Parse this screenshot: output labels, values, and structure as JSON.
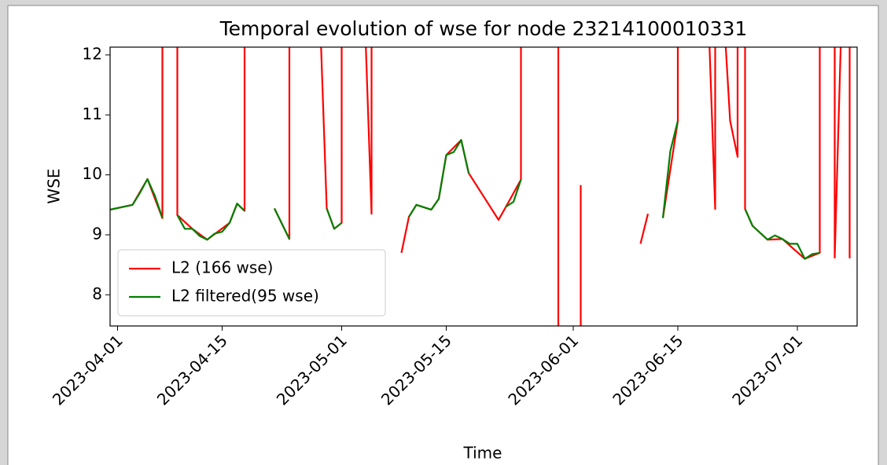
{
  "chart_data": {
    "type": "line",
    "title": "Temporal evolution of wse for node 23214100010331",
    "xlabel": "Time",
    "ylabel": "WSE",
    "xlim": [
      "2023-03-31",
      "2023-07-09"
    ],
    "xticks": [
      "2023-04-01",
      "2023-04-15",
      "2023-05-01",
      "2023-05-15",
      "2023-06-01",
      "2023-06-15",
      "2023-07-01"
    ],
    "ylim": [
      7.48,
      12.13
    ],
    "yticks": [
      8,
      9,
      10,
      11,
      12
    ],
    "legend": "lower left",
    "series": [
      {
        "name": "L2 (166 wse)",
        "color": "#ff0000",
        "x": [
          "2023-03-31",
          "2023-04-03",
          "2023-04-05",
          "2023-04-07",
          "2023-04-07",
          "2023-04-09",
          "2023-04-09",
          "2023-04-11",
          "2023-04-13",
          "2023-04-16",
          "2023-04-17",
          "2023-04-18",
          "2023-04-18",
          null,
          "2023-04-22",
          "2023-04-24",
          "2023-04-24",
          null,
          "2023-04-28",
          "2023-04-29",
          "2023-04-30",
          "2023-05-01",
          "2023-05-01",
          null,
          "2023-05-04",
          "2023-05-05",
          "2023-05-05",
          null,
          "2023-05-09",
          "2023-05-10",
          "2023-05-11",
          "2023-05-13",
          "2023-05-14",
          "2023-05-15",
          "2023-05-17",
          "2023-05-18",
          "2023-05-22",
          "2023-05-23",
          "2023-05-25",
          "2023-05-25",
          null,
          "2023-05-30",
          "2023-05-30",
          null,
          "2023-06-02",
          "2023-06-02",
          null,
          "2023-06-10",
          "2023-06-11",
          null,
          "2023-06-13",
          "2023-06-15",
          "2023-06-15",
          null,
          "2023-06-19",
          "2023-06-20",
          "2023-06-20",
          "2023-06-21",
          "2023-06-22",
          "2023-06-23",
          "2023-06-23",
          null,
          "2023-06-24",
          "2023-06-24",
          "2023-06-25",
          "2023-06-27",
          "2023-06-29",
          "2023-07-02",
          "2023-07-04",
          "2023-07-04",
          "2023-07-06",
          "2023-07-06",
          "2023-07-07",
          "2023-07-08",
          "2023-07-08",
          "2023-07-08"
        ],
        "values": [
          9.42,
          9.5,
          9.93,
          9.28,
          13,
          13,
          9.33,
          9.1,
          8.92,
          9.2,
          9.52,
          9.4,
          13,
          null,
          9.44,
          8.93,
          13,
          null,
          13,
          9.44,
          9.1,
          9.2,
          13,
          null,
          13,
          9.35,
          13,
          null,
          8.7,
          9.3,
          9.5,
          9.42,
          9.6,
          10.33,
          10.58,
          10.03,
          9.25,
          9.47,
          9.92,
          13,
          null,
          13,
          7.0,
          null,
          7.0,
          9.83,
          null,
          8.85,
          9.35,
          null,
          9.28,
          10.9,
          13,
          null,
          13,
          9.43,
          13,
          13,
          10.9,
          10.3,
          13,
          null,
          13,
          9.43,
          9.15,
          8.92,
          8.93,
          8.6,
          8.7,
          13,
          13,
          8.62,
          13,
          13,
          8.62,
          13
        ]
      },
      {
        "name": "L2 filtered(95 wse)",
        "color": "#008000",
        "x": [
          "2023-03-31",
          "2023-04-03",
          "2023-04-04",
          "2023-04-05",
          "2023-04-06",
          "2023-04-07",
          null,
          "2023-04-09",
          "2023-04-10",
          "2023-04-11",
          "2023-04-12",
          "2023-04-13",
          "2023-04-14",
          "2023-04-15",
          "2023-04-16",
          "2023-04-17",
          "2023-04-18",
          null,
          "2023-04-22",
          "2023-04-24",
          null,
          "2023-04-29",
          "2023-04-30",
          "2023-05-01",
          null,
          "2023-05-10",
          "2023-05-11",
          "2023-05-13",
          "2023-05-14",
          "2023-05-15",
          "2023-05-16",
          "2023-05-17",
          "2023-05-18",
          null,
          "2023-05-23",
          "2023-05-24",
          "2023-05-25",
          null,
          "2023-06-13",
          "2023-06-14",
          "2023-06-15",
          null,
          "2023-06-24",
          "2023-06-25",
          "2023-06-27",
          "2023-06-28",
          "2023-06-29",
          "2023-06-30",
          "2023-07-01",
          "2023-07-02",
          "2023-07-03",
          "2023-07-04"
        ],
        "values": [
          9.42,
          9.5,
          9.7,
          9.93,
          9.65,
          9.28,
          null,
          9.33,
          9.1,
          9.1,
          8.98,
          8.92,
          9.02,
          9.05,
          9.2,
          9.52,
          9.4,
          null,
          9.44,
          8.93,
          null,
          9.44,
          9.1,
          9.2,
          null,
          9.3,
          9.5,
          9.42,
          9.6,
          10.33,
          10.38,
          10.58,
          10.03,
          null,
          9.47,
          9.55,
          9.92,
          null,
          9.28,
          10.4,
          10.9,
          null,
          9.43,
          9.15,
          8.92,
          8.99,
          8.93,
          8.85,
          8.85,
          8.6,
          8.68,
          8.7
        ]
      }
    ]
  }
}
